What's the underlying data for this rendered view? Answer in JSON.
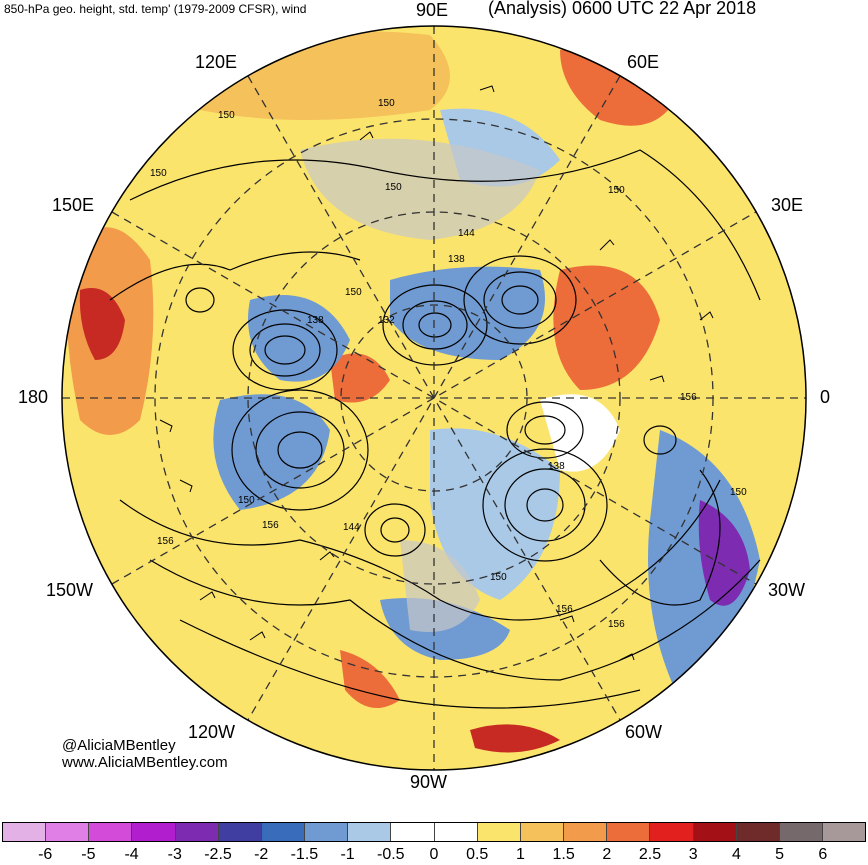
{
  "header": {
    "left_title": "850-hPa geo. height, std. temp' (1979-2009 CFSR), wind",
    "right_title": "(Analysis) 0600 UTC 22 Apr 2018"
  },
  "longitude_labels": {
    "lon_90e": "90E",
    "lon_120e": "120E",
    "lon_60e": "60E",
    "lon_150e": "150E",
    "lon_30e": "30E",
    "lon_180": "180",
    "lon_0": "0",
    "lon_150w": "150W",
    "lon_30w": "30W",
    "lon_120w": "120W",
    "lon_60w": "60W",
    "lon_90w": "90W"
  },
  "contour_labels": [
    "150",
    "150",
    "150",
    "150",
    "144",
    "138",
    "150",
    "138",
    "132",
    "138",
    "150",
    "150",
    "156",
    "144",
    "156",
    "150",
    "156",
    "156",
    "150",
    "156"
  ],
  "credits": {
    "handle": "@AliciaMBentley",
    "website": "www.AliciaMBentley.com"
  },
  "colorbar": {
    "colors": [
      "#e4b1e6",
      "#e07fe6",
      "#d24bd9",
      "#b11ecd",
      "#7d2bb0",
      "#413ea2",
      "#3a6cbc",
      "#6f9ad2",
      "#a9c9e6",
      "#ffffff",
      "#ffffff",
      "#fbe46c",
      "#f4c15a",
      "#f29b4a",
      "#ec6c3a",
      "#e2211f",
      "#a31016",
      "#6f2a2a",
      "#75696b",
      "#a79899"
    ],
    "labels": [
      "-6",
      "-5",
      "-4",
      "-3",
      "-2.5",
      "-2",
      "-1.5",
      "-1",
      "-0.5",
      "0",
      "0.5",
      "1",
      "1.5",
      "2",
      "2.5",
      "3",
      "4",
      "5",
      "6"
    ]
  }
}
